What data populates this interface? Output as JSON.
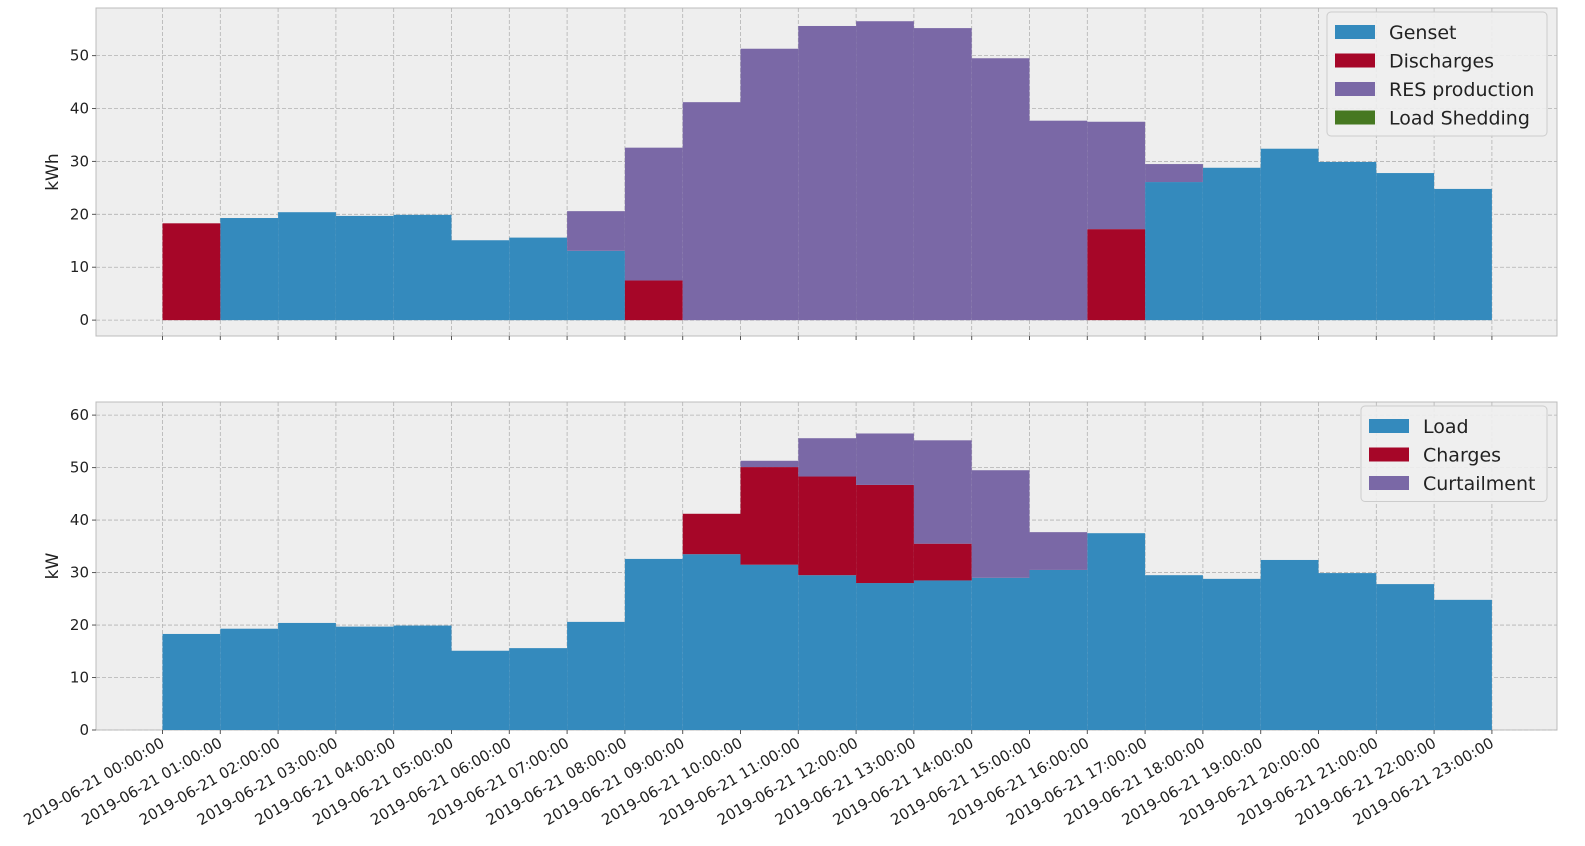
{
  "chart_data": [
    {
      "type": "bar",
      "stacked": true,
      "ylabel": "kWh",
      "ylim": [
        -3,
        59
      ],
      "yticks": [
        0,
        10,
        20,
        30,
        40,
        50
      ],
      "grid": true,
      "legend_placement": "top-right",
      "categories": [
        "2019-06-21 00:00:00",
        "2019-06-21 01:00:00",
        "2019-06-21 02:00:00",
        "2019-06-21 03:00:00",
        "2019-06-21 04:00:00",
        "2019-06-21 05:00:00",
        "2019-06-21 06:00:00",
        "2019-06-21 07:00:00",
        "2019-06-21 08:00:00",
        "2019-06-21 09:00:00",
        "2019-06-21 10:00:00",
        "2019-06-21 11:00:00",
        "2019-06-21 12:00:00",
        "2019-06-21 13:00:00",
        "2019-06-21 14:00:00",
        "2019-06-21 15:00:00",
        "2019-06-21 16:00:00",
        "2019-06-21 17:00:00",
        "2019-06-21 18:00:00",
        "2019-06-21 19:00:00",
        "2019-06-21 20:00:00",
        "2019-06-21 21:00:00",
        "2019-06-21 22:00:00",
        "2019-06-21 23:00:00"
      ],
      "series": [
        {
          "name": "Genset",
          "color": "#348abd",
          "values": [
            0,
            19.3,
            20.4,
            19.7,
            19.9,
            15.1,
            15.6,
            13.1,
            0,
            0,
            0,
            0,
            0,
            0,
            0,
            0,
            0,
            26.1,
            28.8,
            32.4,
            29.9,
            27.8,
            24.8,
            0
          ]
        },
        {
          "name": "Discharges",
          "color": "#a60628",
          "values": [
            18.3,
            0,
            0,
            0,
            0,
            0,
            0,
            0,
            7.5,
            0,
            0,
            0,
            0,
            0,
            0,
            0,
            17.2,
            0,
            0,
            0,
            0,
            0,
            0,
            0
          ]
        },
        {
          "name": "RES production",
          "color": "#7a68a6",
          "values": [
            0,
            0,
            0,
            0,
            0,
            0,
            0,
            7.5,
            25.1,
            41.2,
            51.3,
            55.6,
            56.5,
            55.2,
            49.5,
            37.7,
            20.3,
            3.4,
            0,
            0,
            0,
            0,
            0,
            0
          ]
        },
        {
          "name": "Load Shedding",
          "color": "#467821",
          "values": [
            0,
            0,
            0,
            0,
            0,
            0,
            0,
            0,
            0,
            0,
            0,
            0,
            0,
            0,
            0,
            0,
            0,
            0,
            0,
            0,
            0,
            0,
            0,
            0
          ]
        }
      ]
    },
    {
      "type": "bar",
      "stacked": true,
      "ylabel": "kW",
      "ylim": [
        0,
        62.5
      ],
      "yticks": [
        0,
        10,
        20,
        30,
        40,
        50,
        60
      ],
      "grid": true,
      "legend_placement": "top-right",
      "categories": [
        "2019-06-21 00:00:00",
        "2019-06-21 01:00:00",
        "2019-06-21 02:00:00",
        "2019-06-21 03:00:00",
        "2019-06-21 04:00:00",
        "2019-06-21 05:00:00",
        "2019-06-21 06:00:00",
        "2019-06-21 07:00:00",
        "2019-06-21 08:00:00",
        "2019-06-21 09:00:00",
        "2019-06-21 10:00:00",
        "2019-06-21 11:00:00",
        "2019-06-21 12:00:00",
        "2019-06-21 13:00:00",
        "2019-06-21 14:00:00",
        "2019-06-21 15:00:00",
        "2019-06-21 16:00:00",
        "2019-06-21 17:00:00",
        "2019-06-21 18:00:00",
        "2019-06-21 19:00:00",
        "2019-06-21 20:00:00",
        "2019-06-21 21:00:00",
        "2019-06-21 22:00:00",
        "2019-06-21 23:00:00"
      ],
      "series": [
        {
          "name": "Load",
          "color": "#348abd",
          "values": [
            18.3,
            19.3,
            20.4,
            19.7,
            19.9,
            15.1,
            15.6,
            20.6,
            32.6,
            33.5,
            31.5,
            29.5,
            28.0,
            28.5,
            29.0,
            30.5,
            37.5,
            29.5,
            28.8,
            32.4,
            29.9,
            27.8,
            24.8,
            0
          ]
        },
        {
          "name": "Charges",
          "color": "#a60628",
          "values": [
            0,
            0,
            0,
            0,
            0,
            0,
            0,
            0,
            0,
            7.7,
            18.6,
            18.8,
            18.7,
            7.0,
            0,
            0,
            0,
            0,
            0,
            0,
            0,
            0,
            0,
            0
          ]
        },
        {
          "name": "Curtailment",
          "color": "#7a68a6",
          "values": [
            0,
            0,
            0,
            0,
            0,
            0,
            0,
            0,
            0,
            0,
            1.2,
            7.3,
            9.8,
            19.7,
            20.5,
            7.2,
            0,
            0,
            0,
            0,
            0,
            0,
            0,
            0
          ]
        }
      ]
    }
  ]
}
